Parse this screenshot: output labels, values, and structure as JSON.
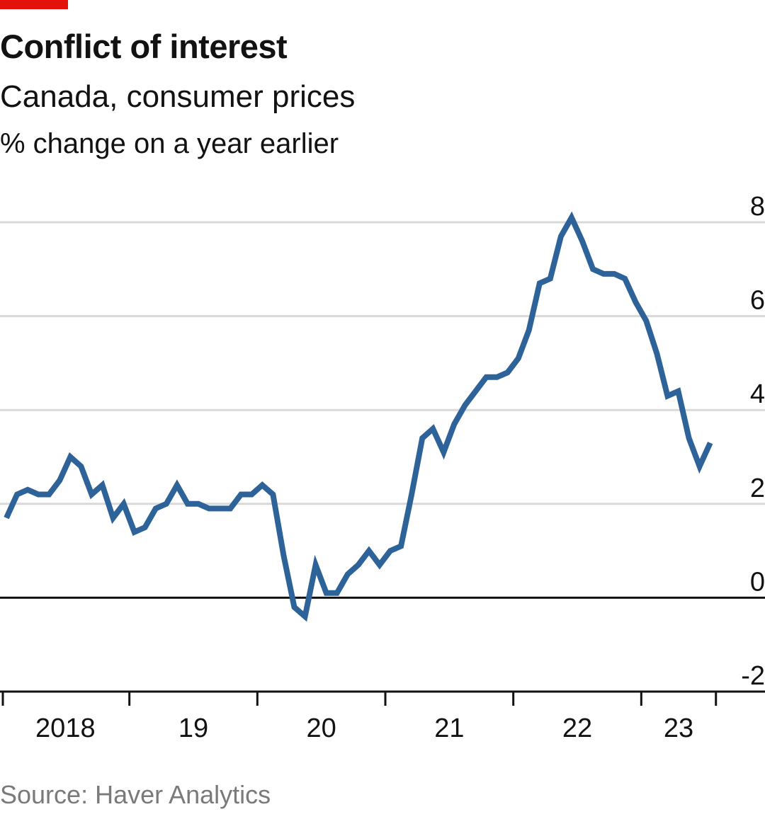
{
  "header": {
    "title": "Conflict of interest",
    "subtitle": "Canada, consumer prices",
    "unit": "% change on a year earlier"
  },
  "footer": {
    "source": "Source: Haver Analytics"
  },
  "colors": {
    "accent": "#e3120b",
    "line": "#2e6399",
    "grid": "#d9d9d9",
    "zero": "#121212"
  },
  "chart_data": {
    "type": "line",
    "title": "Conflict of interest",
    "subtitle": "Canada, consumer prices",
    "ylabel": "% change on a year earlier",
    "ylim": [
      -2,
      8
    ],
    "y_ticks": [
      "8",
      "6",
      "4",
      "2",
      "0",
      "-2"
    ],
    "y_tick_values": [
      8,
      6,
      4,
      2,
      0,
      -2
    ],
    "x_tick_labels": [
      "2018",
      "19",
      "20",
      "21",
      "22",
      "23"
    ],
    "x_tick_years": [
      2018,
      2019,
      2020,
      2021,
      2022,
      2023
    ],
    "xlim": [
      "2018-01",
      "2023-12"
    ],
    "legend": "none",
    "grid": true,
    "series": [
      {
        "x": [
          "2018-01",
          "2018-02",
          "2018-03",
          "2018-04",
          "2018-05",
          "2018-06",
          "2018-07",
          "2018-08",
          "2018-09",
          "2018-10",
          "2018-11",
          "2018-12",
          "2019-01",
          "2019-02",
          "2019-03",
          "2019-04",
          "2019-05",
          "2019-06",
          "2019-07",
          "2019-08",
          "2019-09",
          "2019-10",
          "2019-11",
          "2019-12",
          "2020-01",
          "2020-02",
          "2020-03",
          "2020-04",
          "2020-05",
          "2020-06",
          "2020-07",
          "2020-08",
          "2020-09",
          "2020-10",
          "2020-11",
          "2020-12",
          "2021-01",
          "2021-02",
          "2021-03",
          "2021-04",
          "2021-05",
          "2021-06",
          "2021-07",
          "2021-08",
          "2021-09",
          "2021-10",
          "2021-11",
          "2021-12",
          "2022-01",
          "2022-02",
          "2022-03",
          "2022-04",
          "2022-05",
          "2022-06",
          "2022-07",
          "2022-08",
          "2022-09",
          "2022-10",
          "2022-11",
          "2022-12",
          "2023-01",
          "2023-02",
          "2023-03",
          "2023-04",
          "2023-05",
          "2023-06",
          "2023-07"
        ],
        "values": [
          1.7,
          2.2,
          2.3,
          2.2,
          2.2,
          2.5,
          3.0,
          2.8,
          2.2,
          2.4,
          1.7,
          2.0,
          1.4,
          1.5,
          1.9,
          2.0,
          2.4,
          2.0,
          2.0,
          1.9,
          1.9,
          1.9,
          2.2,
          2.2,
          2.4,
          2.2,
          0.9,
          -0.2,
          -0.4,
          0.7,
          0.1,
          0.1,
          0.5,
          0.7,
          1.0,
          0.7,
          1.0,
          1.1,
          2.2,
          3.4,
          3.6,
          3.1,
          3.7,
          4.1,
          4.4,
          4.7,
          4.7,
          4.8,
          5.1,
          5.7,
          6.7,
          6.8,
          7.7,
          8.1,
          7.6,
          7.0,
          6.9,
          6.9,
          6.8,
          6.3,
          5.9,
          5.2,
          4.3,
          4.4,
          3.4,
          2.8,
          3.3
        ]
      }
    ]
  }
}
